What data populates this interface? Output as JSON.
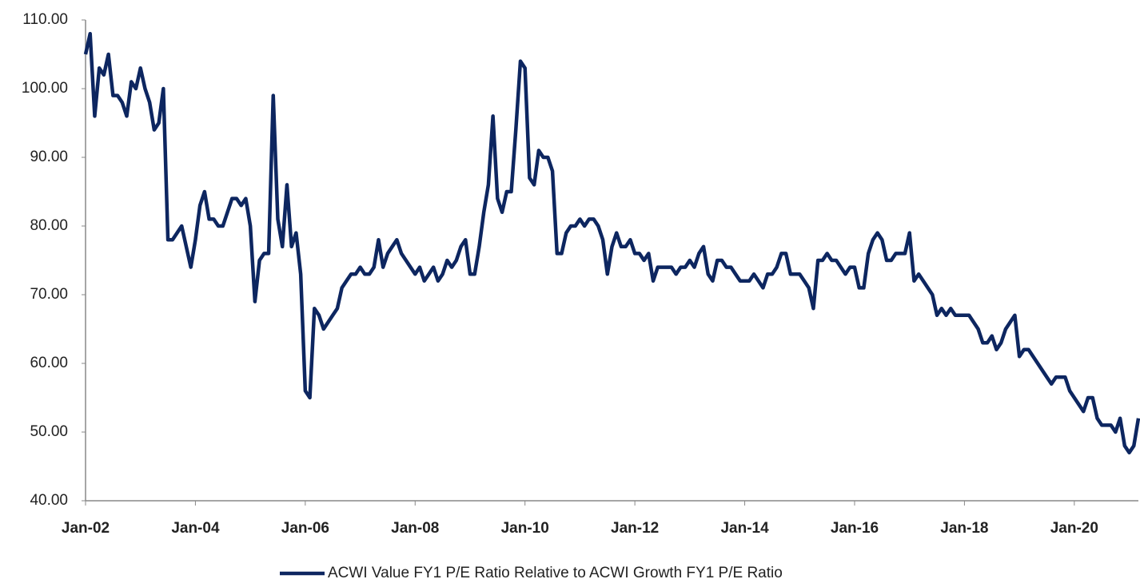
{
  "chart_data": {
    "type": "line",
    "x": [
      "Jan-02",
      "Feb-02",
      "Mar-02",
      "Apr-02",
      "May-02",
      "Jun-02",
      "Jul-02",
      "Aug-02",
      "Sep-02",
      "Oct-02",
      "Nov-02",
      "Dec-02",
      "Jan-03",
      "Feb-03",
      "Mar-03",
      "Apr-03",
      "May-03",
      "Jun-03",
      "Jul-03",
      "Aug-03",
      "Sep-03",
      "Oct-03",
      "Nov-03",
      "Dec-03",
      "Jan-04",
      "Feb-04",
      "Mar-04",
      "Apr-04",
      "May-04",
      "Jun-04",
      "Jul-04",
      "Aug-04",
      "Sep-04",
      "Oct-04",
      "Nov-04",
      "Dec-04",
      "Jan-05",
      "Feb-05",
      "Mar-05",
      "Apr-05",
      "May-05",
      "Jun-05",
      "Jul-05",
      "Aug-05",
      "Sep-05",
      "Oct-05",
      "Nov-05",
      "Dec-05",
      "Jan-06",
      "Feb-06",
      "Mar-06",
      "Apr-06",
      "May-06",
      "Jun-06",
      "Jul-06",
      "Aug-06",
      "Sep-06",
      "Oct-06",
      "Nov-06",
      "Dec-06",
      "Jan-07",
      "Feb-07",
      "Mar-07",
      "Apr-07",
      "May-07",
      "Jun-07",
      "Jul-07",
      "Aug-07",
      "Sep-07",
      "Oct-07",
      "Nov-07",
      "Dec-07",
      "Jan-08",
      "Feb-08",
      "Mar-08",
      "Apr-08",
      "May-08",
      "Jun-08",
      "Jul-08",
      "Aug-08",
      "Sep-08",
      "Oct-08",
      "Nov-08",
      "Dec-08",
      "Jan-09",
      "Feb-09",
      "Mar-09",
      "Apr-09",
      "May-09",
      "Jun-09",
      "Jul-09",
      "Aug-09",
      "Sep-09",
      "Oct-09",
      "Nov-09",
      "Dec-09",
      "Jan-10",
      "Feb-10",
      "Mar-10",
      "Apr-10",
      "May-10",
      "Jun-10",
      "Jul-10",
      "Aug-10",
      "Sep-10",
      "Oct-10",
      "Nov-10",
      "Dec-10",
      "Jan-11",
      "Feb-11",
      "Mar-11",
      "Apr-11",
      "May-11",
      "Jun-11",
      "Jul-11",
      "Aug-11",
      "Sep-11",
      "Oct-11",
      "Nov-11",
      "Dec-11",
      "Jan-12",
      "Feb-12",
      "Mar-12",
      "Apr-12",
      "May-12",
      "Jun-12",
      "Jul-12",
      "Aug-12",
      "Sep-12",
      "Oct-12",
      "Nov-12",
      "Dec-12",
      "Jan-13",
      "Feb-13",
      "Mar-13",
      "Apr-13",
      "May-13",
      "Jun-13",
      "Jul-13",
      "Aug-13",
      "Sep-13",
      "Oct-13",
      "Nov-13",
      "Dec-13",
      "Jan-14",
      "Feb-14",
      "Mar-14",
      "Apr-14",
      "May-14",
      "Jun-14",
      "Jul-14",
      "Aug-14",
      "Sep-14",
      "Oct-14",
      "Nov-14",
      "Dec-14",
      "Jan-15",
      "Feb-15",
      "Mar-15",
      "Apr-15",
      "May-15",
      "Jun-15",
      "Jul-15",
      "Aug-15",
      "Sep-15",
      "Oct-15",
      "Nov-15",
      "Dec-15",
      "Jan-16",
      "Feb-16",
      "Mar-16",
      "Apr-16",
      "May-16",
      "Jun-16",
      "Jul-16",
      "Aug-16",
      "Sep-16",
      "Oct-16",
      "Nov-16",
      "Dec-16",
      "Jan-17",
      "Feb-17",
      "Mar-17",
      "Apr-17",
      "May-17",
      "Jun-17",
      "Jul-17",
      "Aug-17",
      "Sep-17",
      "Oct-17",
      "Nov-17",
      "Dec-17",
      "Jan-18",
      "Feb-18",
      "Mar-18",
      "Apr-18",
      "May-18",
      "Jun-18",
      "Jul-18",
      "Aug-18",
      "Sep-18",
      "Oct-18",
      "Nov-18",
      "Dec-18",
      "Jan-19",
      "Feb-19",
      "Mar-19",
      "Apr-19",
      "May-19",
      "Jun-19",
      "Jul-19",
      "Aug-19",
      "Sep-19",
      "Oct-19",
      "Nov-19",
      "Dec-19",
      "Jan-20",
      "Feb-20",
      "Mar-20",
      "Apr-20",
      "May-20",
      "Jun-20",
      "Jul-20",
      "Aug-20",
      "Sep-20",
      "Oct-20",
      "Nov-20",
      "Dec-20",
      "Jan-21",
      "Feb-21",
      "Mar-21"
    ],
    "series": [
      {
        "name": "ACWI Value FY1 P/E Ratio Relative to ACWI Growth FY1 P/E Ratio",
        "color": "#0d2660",
        "values": [
          105,
          108,
          96,
          103,
          102,
          105,
          99,
          99,
          98,
          96,
          101,
          100,
          103,
          100,
          98,
          94,
          95,
          100,
          78,
          78,
          79,
          80,
          77,
          74,
          78,
          83,
          85,
          81,
          81,
          80,
          80,
          82,
          84,
          84,
          83,
          84,
          80,
          69,
          75,
          76,
          76,
          99,
          81,
          77,
          86,
          77,
          79,
          73,
          56,
          55,
          68,
          67,
          65,
          66,
          67,
          68,
          71,
          72,
          73,
          73,
          74,
          73,
          73,
          74,
          78,
          74,
          76,
          77,
          78,
          76,
          75,
          74,
          73,
          74,
          72,
          73,
          74,
          72,
          73,
          75,
          74,
          75,
          77,
          78,
          73,
          73,
          77,
          82,
          86,
          96,
          84,
          82,
          85,
          85,
          94,
          104,
          103,
          87,
          86,
          91,
          90,
          90,
          88,
          76,
          76,
          79,
          80,
          80,
          81,
          80,
          81,
          81,
          80,
          78,
          73,
          77,
          79,
          77,
          77,
          78,
          76,
          76,
          75,
          76,
          72,
          74,
          74,
          74,
          74,
          73,
          74,
          74,
          75,
          74,
          76,
          77,
          73,
          72,
          75,
          75,
          74,
          74,
          73,
          72,
          72,
          72,
          73,
          72,
          71,
          73,
          73,
          74,
          76,
          76,
          73,
          73,
          73,
          72,
          71,
          68,
          75,
          75,
          76,
          75,
          75,
          74,
          73,
          74,
          74,
          71,
          71,
          76,
          78,
          79,
          78,
          75,
          75,
          76,
          76,
          76,
          79,
          72,
          73,
          72,
          71,
          70,
          67,
          68,
          67,
          68,
          67,
          67,
          67,
          67,
          66,
          65,
          63,
          63,
          64,
          62,
          63,
          65,
          66,
          67,
          61,
          62,
          62,
          61,
          60,
          59,
          58,
          57,
          58,
          58,
          58,
          56,
          55,
          54,
          53,
          55,
          55,
          52,
          51,
          51,
          51,
          50,
          52,
          48,
          47,
          48,
          52
        ]
      }
    ],
    "xlim": [
      "Jan-02",
      "Mar-21"
    ],
    "xticks": [
      "Jan-02",
      "Jan-04",
      "Jan-06",
      "Jan-08",
      "Jan-10",
      "Jan-12",
      "Jan-14",
      "Jan-16",
      "Jan-18",
      "Jan-20"
    ],
    "ylim": [
      40,
      110
    ],
    "yticks": [
      {
        "value": 40,
        "label": "40.00"
      },
      {
        "value": 50,
        "label": "50.00"
      },
      {
        "value": 60,
        "label": "60.00"
      },
      {
        "value": 70,
        "label": "70.00"
      },
      {
        "value": 80,
        "label": "80.00"
      },
      {
        "value": 90,
        "label": "90.00"
      },
      {
        "value": 100,
        "label": "100.00"
      },
      {
        "value": 110,
        "label": "110.00"
      }
    ],
    "grid": false,
    "legend": "bottom"
  }
}
